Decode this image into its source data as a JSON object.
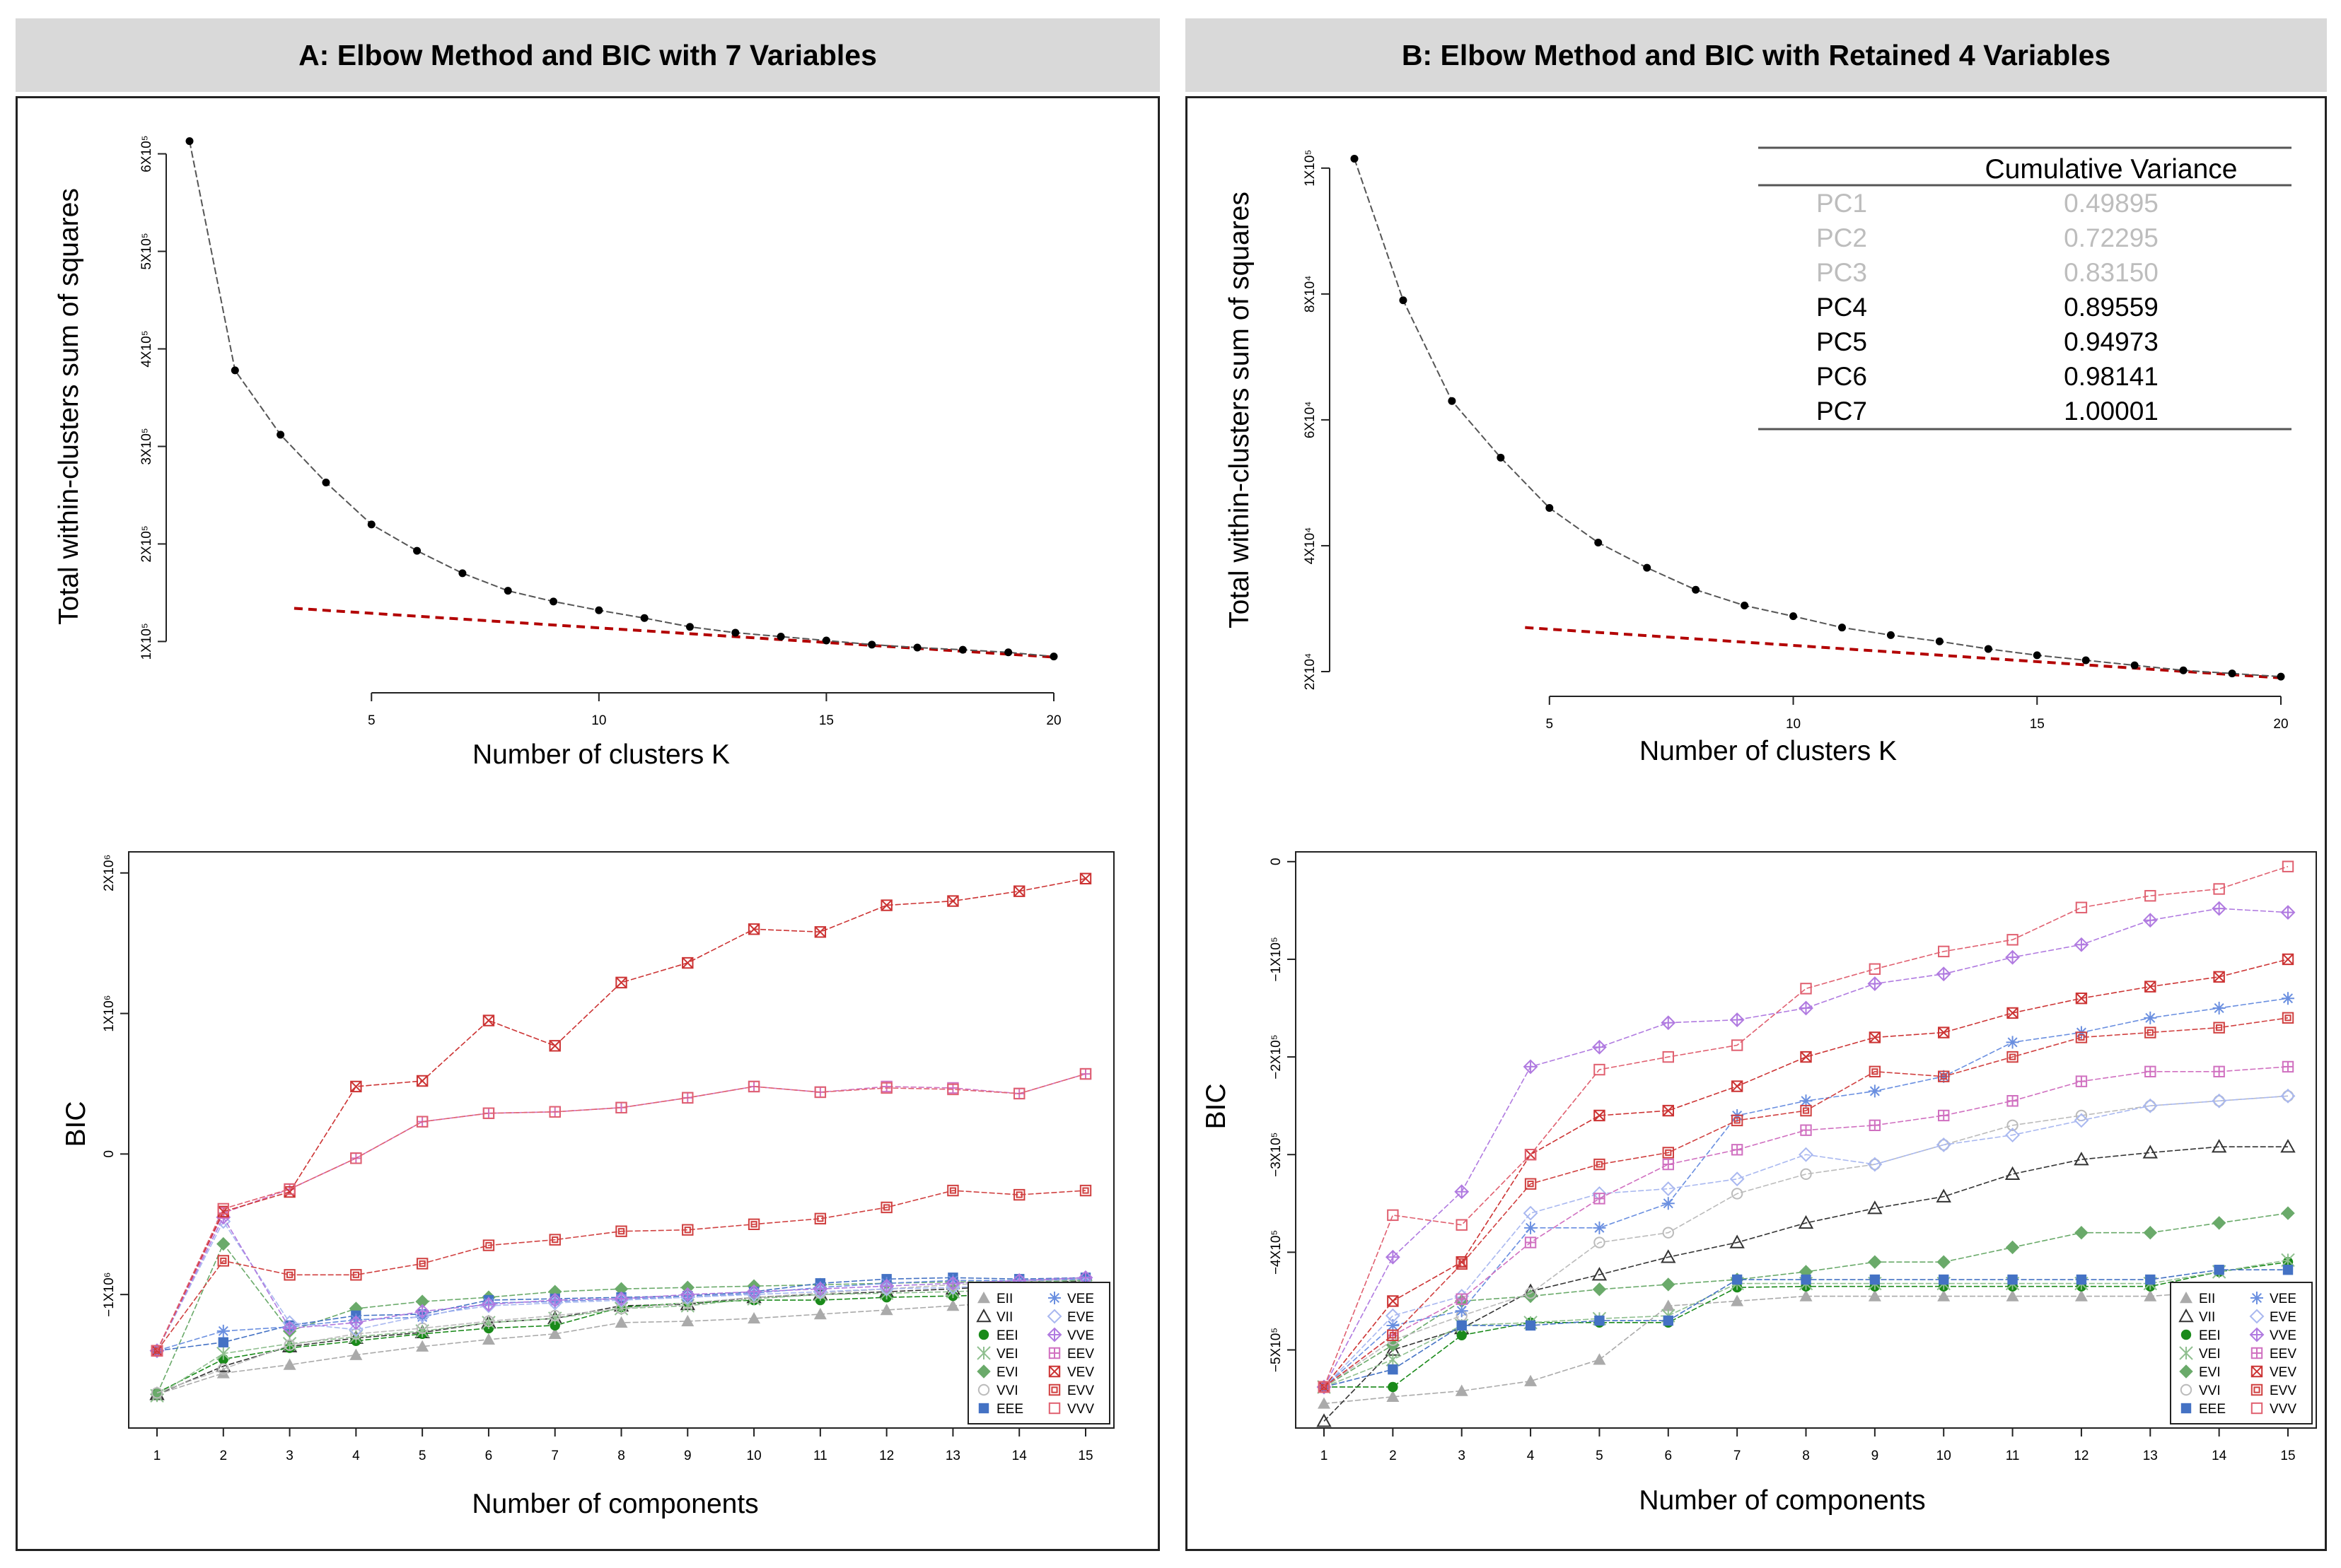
{
  "panels": [
    {
      "header": "A: Elbow Method and BIC with 7 Variables"
    },
    {
      "header": "B: Elbow Method and BIC with Retained 4 Variables"
    }
  ],
  "colors": {
    "elbow_line": "#555555",
    "elbow_point": "#000000",
    "red_dashed": "#b30000",
    "EII": "#aaaaaa",
    "VII": "#333333",
    "EEI": "#1a8a1a",
    "VEI": "#8fbf8f",
    "EVI": "#6aaa6a",
    "VVI": "#bbbbbb",
    "EEE": "#4472c4",
    "VEE": "#6a8fe0",
    "EVE": "#a9b8f0",
    "VVE": "#b07ae0",
    "EEV": "#d070c0",
    "VEV": "#cc3333",
    "EVV": "#d04040",
    "VVV": "#e06070"
  },
  "legend_labels": [
    "EII",
    "VII",
    "EEI",
    "VEI",
    "EVI",
    "VVI",
    "EEE",
    "VEE",
    "EVE",
    "VVE",
    "EEV",
    "VEV",
    "EVV",
    "VVV"
  ],
  "table": {
    "title": "Cumulative Variance",
    "rows": [
      {
        "pc": "PC1",
        "value": "0.49895",
        "muted": true
      },
      {
        "pc": "PC2",
        "value": "0.72295",
        "muted": true
      },
      {
        "pc": "PC3",
        "value": "0.83150",
        "muted": true
      },
      {
        "pc": "PC4",
        "value": "0.89559",
        "muted": false
      },
      {
        "pc": "PC5",
        "value": "0.94973",
        "muted": false
      },
      {
        "pc": "PC6",
        "value": "0.98141",
        "muted": false
      },
      {
        "pc": "PC7",
        "value": "1.00001",
        "muted": false
      }
    ]
  },
  "chart_data": [
    {
      "id": "A-elbow",
      "type": "line",
      "title": "",
      "xlabel": "Number of clusters K",
      "ylabel": "Total within-clusters sum of squares",
      "xlim": [
        1,
        20
      ],
      "ylim": [
        80000,
        620000
      ],
      "xticks": [
        5,
        10,
        15,
        20
      ],
      "xtick_labels": [
        "5",
        "10",
        "15",
        "20"
      ],
      "yticks": [
        100000,
        200000,
        300000,
        400000,
        500000,
        600000
      ],
      "ytick_labels": [
        "1X10⁵",
        "2X10⁵",
        "3X10⁵",
        "4X10⁵",
        "5X10⁵",
        "6X10⁵"
      ],
      "x": [
        1,
        2,
        3,
        4,
        5,
        6,
        7,
        8,
        9,
        10,
        11,
        12,
        13,
        14,
        15,
        16,
        17,
        18,
        19,
        20
      ],
      "y": [
        613000,
        378000,
        312000,
        263000,
        220000,
        193000,
        170000,
        152000,
        141000,
        132000,
        124000,
        115000,
        109000,
        105000,
        101000,
        96800,
        93800,
        91500,
        88900,
        84600
      ],
      "trend_line": {
        "x": [
          3.3,
          20
        ],
        "y": [
          134000,
          84000
        ]
      }
    },
    {
      "id": "A-bic",
      "type": "line",
      "title": "",
      "xlabel": "Number of components",
      "ylabel": "BIC",
      "xlim": [
        1,
        15
      ],
      "ylim": [
        -1950000,
        2150000
      ],
      "xticks": [
        1,
        2,
        3,
        4,
        5,
        6,
        7,
        8,
        9,
        10,
        11,
        12,
        13,
        14,
        15
      ],
      "xtick_labels": [
        "1",
        "2",
        "3",
        "4",
        "5",
        "6",
        "7",
        "8",
        "9",
        "10",
        "11",
        "12",
        "13",
        "14",
        "15"
      ],
      "yticks": [
        -1000000,
        0,
        1000000,
        2000000
      ],
      "ytick_labels": [
        "−1X10⁶",
        "0",
        "1X10⁶",
        "2X10⁶"
      ],
      "legend": "bottom-right",
      "x": [
        1,
        2,
        3,
        4,
        5,
        6,
        7,
        8,
        9,
        10,
        11,
        12,
        13,
        14,
        15
      ],
      "series": [
        {
          "name": "EII",
          "values": [
            -1710000,
            -1560000,
            -1500000,
            -1430000,
            -1370000,
            -1320000,
            -1280000,
            -1200000,
            -1190000,
            -1170000,
            -1140000,
            -1110000,
            -1080000,
            -1050000,
            -1000000
          ]
        },
        {
          "name": "VII",
          "values": [
            -1710000,
            -1510000,
            -1370000,
            -1310000,
            -1270000,
            -1200000,
            -1170000,
            -1080000,
            -1070000,
            -1020000,
            -1000000,
            -980000,
            -960000,
            -930000,
            -900000
          ]
        },
        {
          "name": "EEI",
          "values": [
            -1700000,
            -1460000,
            -1380000,
            -1330000,
            -1280000,
            -1240000,
            -1220000,
            -1090000,
            -1060000,
            -1040000,
            -1040000,
            -1020000,
            -1010000,
            -1000000,
            -1000000
          ]
        },
        {
          "name": "VEI",
          "values": [
            -1720000,
            -1420000,
            -1350000,
            -1300000,
            -1260000,
            -1200000,
            -1170000,
            -1100000,
            -1080000,
            -1030000,
            -1000000,
            -990000,
            -980000,
            -960000,
            -940000
          ]
        },
        {
          "name": "EVI",
          "values": [
            -1710000,
            -640000,
            -1260000,
            -1100000,
            -1050000,
            -1020000,
            -980000,
            -960000,
            -950000,
            -940000,
            -930000,
            -920000,
            -910000,
            -910000,
            -900000
          ]
        },
        {
          "name": "VVI",
          "values": [
            -1700000,
            -1530000,
            -1360000,
            -1280000,
            -1240000,
            -1190000,
            -1150000,
            -1100000,
            -1060000,
            -1020000,
            -990000,
            -960000,
            -930000,
            -910000,
            -890000
          ]
        },
        {
          "name": "EEE",
          "values": [
            -1400000,
            -1340000,
            -1220000,
            -1150000,
            -1140000,
            -1040000,
            -1030000,
            -1020000,
            -1010000,
            -980000,
            -920000,
            -890000,
            -880000,
            -890000,
            -880000
          ]
        },
        {
          "name": "VEE",
          "values": [
            -1400000,
            -1260000,
            -1230000,
            -1180000,
            -1160000,
            -1060000,
            -1050000,
            -1030000,
            -1020000,
            -990000,
            -950000,
            -920000,
            -900000,
            -900000,
            -890000
          ]
        },
        {
          "name": "EVE",
          "values": [
            -1400000,
            -480000,
            -1200000,
            -1250000,
            -1150000,
            -1080000,
            -1060000,
            -1040000,
            -1020000,
            -1000000,
            -980000,
            -960000,
            -950000,
            -930000,
            -920000
          ]
        },
        {
          "name": "VVE",
          "values": [
            -1400000,
            -450000,
            -1240000,
            -1200000,
            -1120000,
            -1070000,
            -1040000,
            -1030000,
            -1000000,
            -980000,
            -960000,
            -940000,
            -920000,
            -900000,
            -880000
          ]
        },
        {
          "name": "EEV",
          "values": [
            -1400000,
            -420000,
            -250000,
            -30000,
            230000,
            290000,
            300000,
            330000,
            400000,
            480000,
            440000,
            480000,
            470000,
            430000,
            570000
          ]
        },
        {
          "name": "VEV",
          "values": [
            -1400000,
            -410000,
            -270000,
            480000,
            520000,
            950000,
            770000,
            1220000,
            1360000,
            1600000,
            1580000,
            1770000,
            1800000,
            1870000,
            1960000
          ]
        },
        {
          "name": "EVV",
          "values": [
            -1400000,
            -760000,
            -860000,
            -860000,
            -780000,
            -650000,
            -610000,
            -550000,
            -540000,
            -500000,
            -460000,
            -380000,
            -260000,
            -290000,
            -260000
          ]
        },
        {
          "name": "VVV",
          "values": [
            -1400000,
            -390000,
            -250000,
            -30000,
            230000,
            290000,
            300000,
            330000,
            400000,
            480000,
            440000,
            470000,
            460000,
            430000,
            570000
          ]
        }
      ]
    },
    {
      "id": "B-elbow",
      "type": "line",
      "title": "",
      "xlabel": "Number of clusters K",
      "ylabel": "Total within-clusters sum of squares",
      "xlim": [
        1,
        20
      ],
      "ylim": [
        20000,
        102000
      ],
      "xticks": [
        5,
        10,
        15,
        20
      ],
      "xtick_labels": [
        "5",
        "10",
        "15",
        "20"
      ],
      "yticks": [
        20000,
        40000,
        60000,
        80000,
        100000
      ],
      "ytick_labels": [
        "2X10⁴",
        "4X10⁴",
        "6X10⁴",
        "8X10⁴",
        "1X10⁵"
      ],
      "x": [
        1,
        2,
        3,
        4,
        5,
        6,
        7,
        8,
        9,
        10,
        11,
        12,
        13,
        14,
        15,
        16,
        17,
        18,
        19,
        20
      ],
      "y": [
        101500,
        79000,
        63000,
        54000,
        46000,
        40500,
        36500,
        33000,
        30500,
        28800,
        27000,
        25800,
        24800,
        23600,
        22600,
        21800,
        21000,
        20200,
        19700,
        19200
      ],
      "trend_line": {
        "x": [
          4.5,
          20
        ],
        "y": [
          27000,
          19000
        ]
      }
    },
    {
      "id": "B-bic",
      "type": "line",
      "title": "",
      "xlabel": "Number of components",
      "ylabel": "BIC",
      "xlim": [
        1,
        15
      ],
      "ylim": [
        -580000,
        10000
      ],
      "xticks": [
        1,
        2,
        3,
        4,
        5,
        6,
        7,
        8,
        9,
        10,
        11,
        12,
        13,
        14,
        15
      ],
      "xtick_labels": [
        "1",
        "2",
        "3",
        "4",
        "5",
        "6",
        "7",
        "8",
        "9",
        "10",
        "11",
        "12",
        "13",
        "14",
        "15"
      ],
      "yticks": [
        -500000,
        -400000,
        -300000,
        -200000,
        -100000,
        0
      ],
      "ytick_labels": [
        "−5X10⁵",
        "−4X10⁵",
        "−3X10⁵",
        "−2X10⁵",
        "−1X10⁵",
        "0"
      ],
      "legend": "bottom-right",
      "x": [
        1,
        2,
        3,
        4,
        5,
        6,
        7,
        8,
        9,
        10,
        11,
        12,
        13,
        14,
        15
      ],
      "series": [
        {
          "name": "EII",
          "values": [
            -555000,
            -548000,
            -542000,
            -532000,
            -510000,
            -455000,
            -450000,
            -445000,
            -445000,
            -445000,
            -445000,
            -445000,
            -445000,
            -440000,
            -440000
          ]
        },
        {
          "name": "VII",
          "values": [
            -573000,
            -500000,
            -478000,
            -440000,
            -423000,
            -405000,
            -390000,
            -370000,
            -355000,
            -343000,
            -320000,
            -305000,
            -298000,
            -292000,
            -292000
          ]
        },
        {
          "name": "EEI",
          "values": [
            -538000,
            -538000,
            -485000,
            -472000,
            -472000,
            -472000,
            -436000,
            -435000,
            -435000,
            -435000,
            -435000,
            -435000,
            -435000,
            -420000,
            -410000
          ]
        },
        {
          "name": "VEI",
          "values": [
            -538000,
            -510000,
            -475000,
            -472000,
            -468000,
            -465000,
            -432000,
            -432000,
            -432000,
            -432000,
            -432000,
            -432000,
            -432000,
            -420000,
            -408000
          ]
        },
        {
          "name": "EVI",
          "values": [
            -538000,
            -495000,
            -450000,
            -445000,
            -438000,
            -433000,
            -428000,
            -420000,
            -410000,
            -410000,
            -395000,
            -380000,
            -380000,
            -370000,
            -360000
          ]
        },
        {
          "name": "VVI",
          "values": [
            -538000,
            -490000,
            -465000,
            -442000,
            -390000,
            -380000,
            -340000,
            -320000,
            -310000,
            -290000,
            -270000,
            -260000,
            -250000,
            -245000,
            -240000
          ]
        },
        {
          "name": "EEE",
          "values": [
            -538000,
            -520000,
            -475000,
            -475000,
            -470000,
            -470000,
            -428000,
            -428000,
            -428000,
            -428000,
            -428000,
            -428000,
            -428000,
            -418000,
            -418000
          ]
        },
        {
          "name": "VEE",
          "values": [
            -538000,
            -475000,
            -460000,
            -375000,
            -375000,
            -350000,
            -260000,
            -245000,
            -235000,
            -220000,
            -185000,
            -175000,
            -160000,
            -150000,
            -140000
          ]
        },
        {
          "name": "EVE",
          "values": [
            -538000,
            -465000,
            -445000,
            -360000,
            -340000,
            -335000,
            -325000,
            -300000,
            -310000,
            -290000,
            -280000,
            -265000,
            -250000,
            -245000,
            -240000
          ]
        },
        {
          "name": "VVE",
          "values": [
            -538000,
            -405000,
            -338000,
            -210000,
            -190000,
            -165000,
            -162000,
            -150000,
            -125000,
            -115000,
            -98000,
            -85000,
            -60000,
            -48000,
            -52000
          ]
        },
        {
          "name": "EEV",
          "values": [
            -538000,
            -485000,
            -448000,
            -390000,
            -345000,
            -310000,
            -295000,
            -275000,
            -270000,
            -260000,
            -245000,
            -225000,
            -215000,
            -215000,
            -210000
          ]
        },
        {
          "name": "VEV",
          "values": [
            -538000,
            -450000,
            -410000,
            -300000,
            -260000,
            -255000,
            -230000,
            -200000,
            -180000,
            -175000,
            -155000,
            -140000,
            -128000,
            -118000,
            -100000
          ]
        },
        {
          "name": "EVV",
          "values": [
            -538000,
            -485000,
            -412000,
            -330000,
            -310000,
            -298000,
            -265000,
            -255000,
            -215000,
            -220000,
            -200000,
            -180000,
            -175000,
            -170000,
            -160000
          ]
        },
        {
          "name": "VVV",
          "values": [
            -538000,
            -362000,
            -372000,
            -300000,
            -213000,
            -200000,
            -188000,
            -130000,
            -110000,
            -92000,
            -80000,
            -47000,
            -35000,
            -28000,
            -5000
          ]
        }
      ]
    }
  ]
}
